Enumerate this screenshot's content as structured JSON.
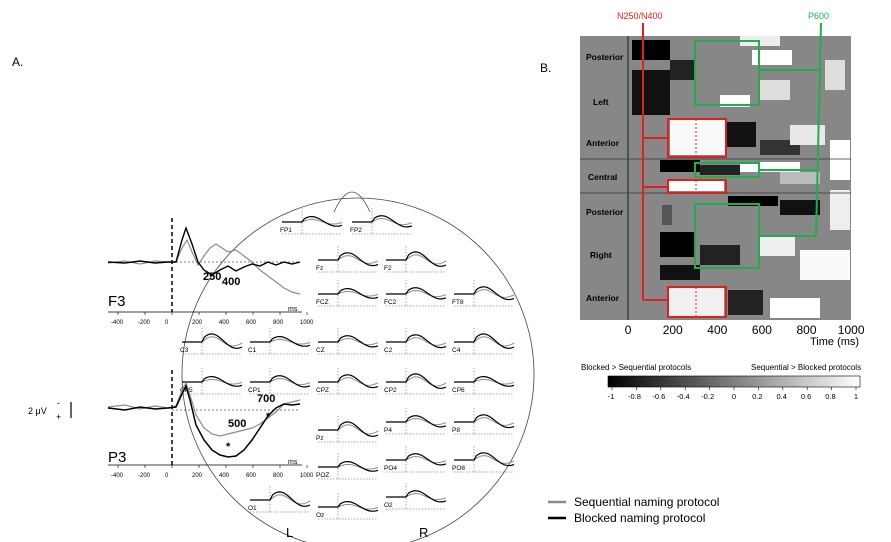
{
  "panel_a": {
    "label": "A.",
    "scale_label": "2 μV",
    "scale_minus": "-",
    "scale_plus": "+",
    "left_label": "L",
    "right_label": "R",
    "ms_label": "ms",
    "big_ticks": [
      "-400",
      "-200",
      "0",
      "200",
      "400",
      "600",
      "800",
      "1000"
    ],
    "f3": {
      "name": "F3",
      "peak_a": "250",
      "peak_b": "400"
    },
    "p3": {
      "name": "P3",
      "peak_a": "700",
      "peak_b": "500",
      "star": "*"
    },
    "electrodes": [
      "FP1",
      "FP2",
      "Fz",
      "F2",
      "FCZ",
      "FC2",
      "FT8",
      "C3",
      "C1",
      "CZ",
      "C2",
      "C4",
      "CP5",
      "CP1",
      "CPZ",
      "CP2",
      "CP6",
      "P4",
      "P8",
      "Pz",
      "POZ",
      "PO4",
      "PO8",
      "O1",
      "Oz",
      "O2"
    ],
    "legend": {
      "sequential": "Sequential naming protocol",
      "blocked": "Blocked naming protocol",
      "sequential_color": "#8c8c8c",
      "blocked_color": "#000000"
    }
  },
  "panel_b": {
    "label": "B.",
    "n_label": "N250/N400",
    "p_label": "P600",
    "n_color": "#e0201f",
    "p_color": "#1fae4b",
    "rows": [
      "Posterior",
      "Left",
      "Anterior",
      "Central",
      "Posterior",
      "Right",
      "Anterior"
    ],
    "x_ticks": [
      "0",
      "200",
      "400",
      "600",
      "800",
      "1000"
    ],
    "x_label": "Time (ms)",
    "colorbar_left": "Blocked > Sequential protocols",
    "colorbar_right": "Sequential > Blocked protocols",
    "colorbar_ticks": [
      "-1",
      "-0.8",
      "-0.6",
      "-0.4",
      "-0.2",
      "0",
      "0.2",
      "0.4",
      "0.6",
      "0.8",
      "1"
    ]
  }
}
